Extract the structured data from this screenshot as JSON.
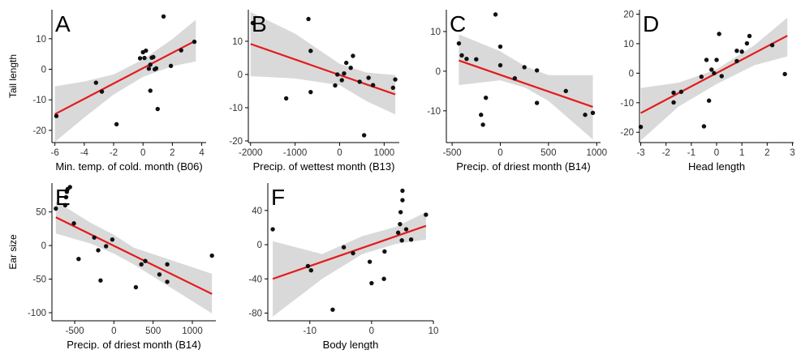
{
  "chart_data": [
    {
      "panel": "A",
      "type": "scatter",
      "xlabel": "Min. temp. of cold. month (B06)",
      "ylabel": "Tail length",
      "xticks": [
        "-6",
        "-4",
        "-2",
        "0",
        "2",
        "4"
      ],
      "yticks": [
        "-20",
        "-10",
        "0",
        "10"
      ],
      "xlim": [
        -6.2,
        4.3
      ],
      "ylim": [
        -24,
        19.5
      ],
      "points": [
        {
          "x": -5.9,
          "y": -15.3
        },
        {
          "x": -3.2,
          "y": -4.4
        },
        {
          "x": -2.8,
          "y": -7.3
        },
        {
          "x": -1.8,
          "y": -18.0
        },
        {
          "x": -0.2,
          "y": 3.6
        },
        {
          "x": 0.0,
          "y": 5.6
        },
        {
          "x": 0.1,
          "y": 3.7
        },
        {
          "x": 0.2,
          "y": 6.1
        },
        {
          "x": 0.4,
          "y": 0.2
        },
        {
          "x": 0.5,
          "y": 1.5
        },
        {
          "x": 0.5,
          "y": -7.0
        },
        {
          "x": 0.6,
          "y": 3.8
        },
        {
          "x": 0.7,
          "y": 4.0
        },
        {
          "x": 0.8,
          "y": 0.0
        },
        {
          "x": 0.9,
          "y": 0.3
        },
        {
          "x": 1.0,
          "y": -13.0
        },
        {
          "x": 1.4,
          "y": 17.3
        },
        {
          "x": 1.9,
          "y": 1.1
        },
        {
          "x": 2.6,
          "y": 6.2
        },
        {
          "x": 3.5,
          "y": 9.0
        }
      ],
      "fit": {
        "x": [
          -6.0,
          3.6
        ],
        "y": [
          -14.7,
          9.4
        ]
      },
      "band": {
        "x": [
          -6.0,
          -4.0,
          -2.0,
          0.0,
          2.0,
          3.6
        ],
        "lower": [
          -23.8,
          -15.8,
          -8.3,
          -2.5,
          1.0,
          2.6
        ],
        "upper": [
          -5.6,
          -4.0,
          -1.7,
          3.2,
          9.9,
          16.2
        ]
      }
    },
    {
      "panel": "B",
      "type": "scatter",
      "xlabel": "Precip. of wettest month (B13)",
      "ylabel": "",
      "xticks": [
        "-2000",
        "-1000",
        "0",
        "1000"
      ],
      "yticks": [
        "-20",
        "-10",
        "0",
        "10"
      ],
      "xlim": [
        -2050,
        1340
      ],
      "ylim": [
        -20.5,
        19.5
      ],
      "points": [
        {
          "x": -1950,
          "y": 15.5
        },
        {
          "x": -1200,
          "y": -7.2
        },
        {
          "x": -700,
          "y": 16.7
        },
        {
          "x": -650,
          "y": 7.1
        },
        {
          "x": -650,
          "y": -5.3
        },
        {
          "x": -100,
          "y": -3.3
        },
        {
          "x": -50,
          "y": 0.0
        },
        {
          "x": 50,
          "y": -1.7
        },
        {
          "x": 100,
          "y": 0.3
        },
        {
          "x": 150,
          "y": 3.5
        },
        {
          "x": 250,
          "y": 2.0
        },
        {
          "x": 300,
          "y": 5.6
        },
        {
          "x": 450,
          "y": -2.2
        },
        {
          "x": 550,
          "y": -18.3
        },
        {
          "x": 650,
          "y": -1.0
        },
        {
          "x": 750,
          "y": -3.2
        },
        {
          "x": 1200,
          "y": -4.0
        },
        {
          "x": 1250,
          "y": -1.5
        }
      ],
      "fit": {
        "x": [
          -2000,
          1250
        ],
        "y": [
          9.2,
          -6.0
        ]
      },
      "band": {
        "x": [
          -2000,
          -1000,
          0,
          600,
          1250
        ],
        "lower": [
          -0.5,
          -1.2,
          -3.2,
          -8.0,
          -12.0
        ],
        "upper": [
          18.8,
          12.3,
          3.2,
          0.6,
          -0.2
        ]
      }
    },
    {
      "panel": "C",
      "type": "scatter",
      "xlabel": "Precip. of driest month (B14)",
      "ylabel": "",
      "xticks": [
        "-500",
        "0",
        "500",
        "1000"
      ],
      "yticks": [
        "-10",
        "0",
        "10"
      ],
      "xlim": [
        -560,
        1040
      ],
      "ylim": [
        -18,
        15.5
      ],
      "points": [
        {
          "x": -430,
          "y": 7.0
        },
        {
          "x": -400,
          "y": 4.0
        },
        {
          "x": -350,
          "y": 3.1
        },
        {
          "x": -250,
          "y": 3.0
        },
        {
          "x": -200,
          "y": -11.0
        },
        {
          "x": -180,
          "y": -13.5
        },
        {
          "x": -150,
          "y": -6.7
        },
        {
          "x": -50,
          "y": 14.3
        },
        {
          "x": 0,
          "y": 6.2
        },
        {
          "x": 0,
          "y": 1.5
        },
        {
          "x": 150,
          "y": -1.8
        },
        {
          "x": 250,
          "y": 1.0
        },
        {
          "x": 380,
          "y": 0.2
        },
        {
          "x": 380,
          "y": -8.0
        },
        {
          "x": 680,
          "y": -5.0
        },
        {
          "x": 880,
          "y": -11.0
        },
        {
          "x": 960,
          "y": -10.5
        }
      ],
      "fit": {
        "x": [
          -430,
          960
        ],
        "y": [
          2.7,
          -9.0
        ]
      },
      "band": {
        "x": [
          -430,
          0,
          260,
          500,
          960
        ],
        "lower": [
          -3.5,
          -2.3,
          -4.2,
          -7.5,
          -17.2
        ],
        "upper": [
          9.3,
          5.0,
          1.2,
          -1.0,
          -1.0
        ]
      }
    },
    {
      "panel": "D",
      "type": "scatter",
      "xlabel": "Head length",
      "ylabel": "",
      "xticks": [
        "-3",
        "-2",
        "-1",
        "0",
        "1",
        "2",
        "3"
      ],
      "yticks": [
        "-20",
        "-10",
        "0",
        "10",
        "20"
      ],
      "xlim": [
        -3.05,
        3.05
      ],
      "ylim": [
        -23.5,
        21.5
      ],
      "points": [
        {
          "x": -3.0,
          "y": -18.2
        },
        {
          "x": -1.7,
          "y": -9.9
        },
        {
          "x": -1.7,
          "y": -6.6
        },
        {
          "x": -1.4,
          "y": -6.3
        },
        {
          "x": -0.6,
          "y": -1.2
        },
        {
          "x": -0.5,
          "y": -18.0
        },
        {
          "x": -0.4,
          "y": 4.5
        },
        {
          "x": -0.3,
          "y": -9.3
        },
        {
          "x": -0.2,
          "y": 1.2
        },
        {
          "x": -0.1,
          "y": 0.0
        },
        {
          "x": 0.0,
          "y": 4.5
        },
        {
          "x": 0.1,
          "y": 13.3
        },
        {
          "x": 0.2,
          "y": -1.0
        },
        {
          "x": 0.8,
          "y": 4.1
        },
        {
          "x": 0.8,
          "y": 7.6
        },
        {
          "x": 1.0,
          "y": 7.3
        },
        {
          "x": 1.2,
          "y": 10.1
        },
        {
          "x": 1.3,
          "y": 12.6
        },
        {
          "x": 2.2,
          "y": 9.5
        },
        {
          "x": 2.7,
          "y": -0.3
        }
      ],
      "fit": {
        "x": [
          -3.0,
          2.8
        ],
        "y": [
          -13.5,
          12.7
        ]
      },
      "band": {
        "x": [
          -3.0,
          -1.5,
          0.0,
          1.5,
          2.8
        ],
        "lower": [
          -22.8,
          -11.3,
          -3.7,
          2.7,
          5.7
        ],
        "upper": [
          -5.0,
          -3.2,
          1.3,
          9.5,
          18.8
        ]
      }
    },
    {
      "panel": "E",
      "type": "scatter",
      "xlabel": "Precip. of driest month (B14)",
      "ylabel": "Ear size",
      "xticks": [
        "-500",
        "0",
        "500",
        "1000"
      ],
      "yticks": [
        "-100",
        "-50",
        "0",
        "50"
      ],
      "xlim": [
        -790,
        1300
      ],
      "ylim": [
        -112,
        93
      ],
      "points": [
        {
          "x": -740,
          "y": 55
        },
        {
          "x": -620,
          "y": 60
        },
        {
          "x": -610,
          "y": 72
        },
        {
          "x": -600,
          "y": 80
        },
        {
          "x": -590,
          "y": 84
        },
        {
          "x": -560,
          "y": 87
        },
        {
          "x": -510,
          "y": 33
        },
        {
          "x": -450,
          "y": -20
        },
        {
          "x": -250,
          "y": 12
        },
        {
          "x": -200,
          "y": -7
        },
        {
          "x": -170,
          "y": -52
        },
        {
          "x": -100,
          "y": -1
        },
        {
          "x": -20,
          "y": 9
        },
        {
          "x": 280,
          "y": -62
        },
        {
          "x": 350,
          "y": -28
        },
        {
          "x": 400,
          "y": -23
        },
        {
          "x": 580,
          "y": -43
        },
        {
          "x": 680,
          "y": -54
        },
        {
          "x": 680,
          "y": -28
        },
        {
          "x": 1250,
          "y": -15
        }
      ],
      "fit": {
        "x": [
          -740,
          1250
        ],
        "y": [
          42,
          -72
        ]
      },
      "band": {
        "x": [
          -740,
          -300,
          0,
          250,
          1250
        ],
        "lower": [
          18,
          3,
          -12,
          -28,
          -101
        ],
        "upper": [
          66,
          34,
          16,
          -3,
          -42
        ]
      }
    },
    {
      "panel": "F",
      "type": "scatter",
      "xlabel": "Body length",
      "ylabel": "",
      "xticks": [
        "-10",
        "0",
        "10"
      ],
      "yticks": [
        "-80",
        "-40",
        "0",
        "40"
      ],
      "xlim": [
        -16.8,
        10.0
      ],
      "ylim": [
        -89,
        72
      ],
      "points": [
        {
          "x": -16.0,
          "y": 18
        },
        {
          "x": -10.3,
          "y": -25
        },
        {
          "x": -9.8,
          "y": -30
        },
        {
          "x": -6.3,
          "y": -76
        },
        {
          "x": -4.5,
          "y": -3
        },
        {
          "x": -3.0,
          "y": -10
        },
        {
          "x": -0.3,
          "y": -20
        },
        {
          "x": 0.0,
          "y": -45
        },
        {
          "x": 2.0,
          "y": -40
        },
        {
          "x": 2.1,
          "y": -8
        },
        {
          "x": 4.3,
          "y": 14
        },
        {
          "x": 4.6,
          "y": 24
        },
        {
          "x": 4.7,
          "y": 38
        },
        {
          "x": 4.9,
          "y": 5
        },
        {
          "x": 5.0,
          "y": 52
        },
        {
          "x": 5.0,
          "y": 63
        },
        {
          "x": 5.6,
          "y": 18
        },
        {
          "x": 6.4,
          "y": 6
        },
        {
          "x": 8.8,
          "y": 35
        }
      ],
      "fit": {
        "x": [
          -16.0,
          8.8
        ],
        "y": [
          -40,
          22
        ]
      },
      "band": {
        "x": [
          -16.0,
          -8.0,
          -1.5,
          4.0,
          8.8
        ],
        "lower": [
          -84,
          -40,
          -11,
          1,
          6
        ],
        "upper": [
          4,
          -11,
          10,
          21,
          38
        ]
      }
    }
  ]
}
